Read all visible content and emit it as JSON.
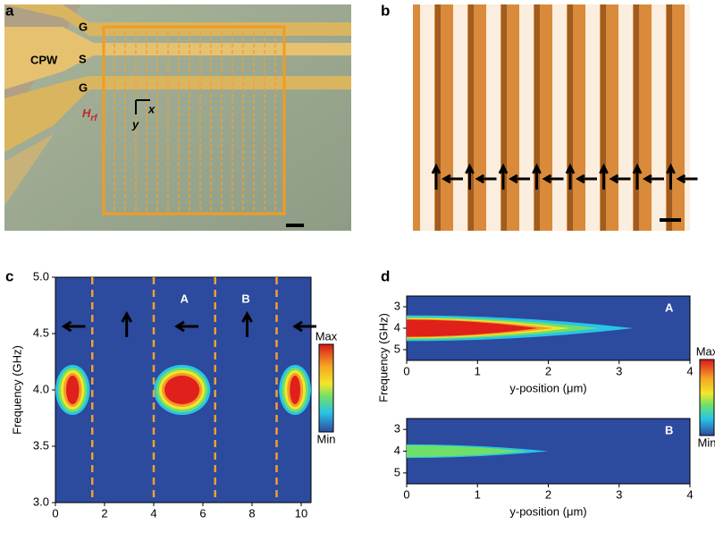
{
  "panel_labels": [
    "a",
    "b",
    "c",
    "d"
  ],
  "photo": {
    "lines": [
      "G",
      "S",
      "G"
    ],
    "waveguide": "CPW",
    "field": {
      "symbol": "H",
      "subscript": "rf"
    },
    "axes": [
      "x",
      "y"
    ]
  },
  "chart_data": [
    {
      "type": "heatmap",
      "ylabel": "Frequency (GHz)",
      "xlim": [
        0,
        10.4
      ],
      "ylim": [
        3,
        5
      ],
      "xticks": [
        0,
        2,
        4,
        6,
        8,
        10
      ],
      "yticks": [
        {
          "value": 3,
          "label": "3.0"
        },
        {
          "value": 3.5,
          "label": "3.5"
        },
        {
          "value": 4,
          "label": "4.0"
        },
        {
          "value": 4.5,
          "label": "4.5"
        },
        {
          "value": 5,
          "label": "5.0"
        }
      ],
      "boundaries": [
        1.5,
        4.0,
        6.5,
        9.0
      ],
      "modes": [
        {
          "x": [
            0,
            1.4
          ],
          "frequency": 4.0
        },
        {
          "x": [
            4.0,
            6.3
          ],
          "frequency": 4.0
        },
        {
          "x": [
            9.1,
            10.4
          ],
          "frequency": 4.0
        }
      ],
      "annotations": [
        "A",
        "B"
      ],
      "colorbar": {
        "max": "Max",
        "min": "Min"
      },
      "background": "#2c4a9e"
    },
    {
      "type": "heatmap",
      "ylabel": "Frequency (GHz)",
      "xlabel": "y-position (μm)",
      "xlim": [
        0,
        4
      ],
      "ylim": [
        2.5,
        5.5
      ],
      "xticks": [
        0,
        1,
        2,
        3,
        4
      ],
      "yticks": [
        3,
        4,
        5
      ],
      "series": [
        {
          "name": "A",
          "frequency": 4.0,
          "extent": 3.2,
          "peak": 1
        },
        {
          "name": "B",
          "frequency": 4.0,
          "extent": 2.0,
          "peak": 0.4
        }
      ],
      "colorbar": {
        "max": "Max",
        "min": "Min"
      },
      "background": "#2c4a9e"
    }
  ]
}
